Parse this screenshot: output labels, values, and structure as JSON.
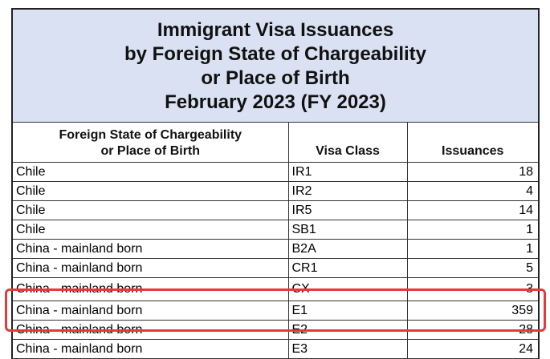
{
  "title": {
    "lines": [
      "Immigrant Visa Issuances",
      "by Foreign State of Chargeability",
      "or Place of Birth",
      "February 2023 (FY 2023)"
    ]
  },
  "table": {
    "headers": {
      "col1_line1": "Foreign State of Chargeability",
      "col1_line2": "or Place of Birth",
      "col2": "Visa Class",
      "col3": "Issuances"
    },
    "rows": [
      {
        "country": "Chile",
        "visa_class": "IR1",
        "issuances": "18"
      },
      {
        "country": "Chile",
        "visa_class": "IR2",
        "issuances": "4"
      },
      {
        "country": "Chile",
        "visa_class": "IR5",
        "issuances": "14"
      },
      {
        "country": "Chile",
        "visa_class": "SB1",
        "issuances": "1"
      },
      {
        "country": "China - mainland born",
        "visa_class": "B2A",
        "issuances": "1"
      },
      {
        "country": "China - mainland born",
        "visa_class": "CR1",
        "issuances": "5"
      },
      {
        "country": "China - mainland born",
        "visa_class": "CX",
        "issuances": "3"
      },
      {
        "country": "China - mainland born",
        "visa_class": "E1",
        "issuances": "359"
      },
      {
        "country": "China - mainland born",
        "visa_class": "E2",
        "issuances": "28"
      },
      {
        "country": "China - mainland born",
        "visa_class": "E3",
        "issuances": "24"
      }
    ]
  },
  "highlight": {
    "color": "#e23b3b",
    "rows": [
      "E1",
      "E2"
    ]
  },
  "colors": {
    "title_background": "#d9e1f2"
  }
}
